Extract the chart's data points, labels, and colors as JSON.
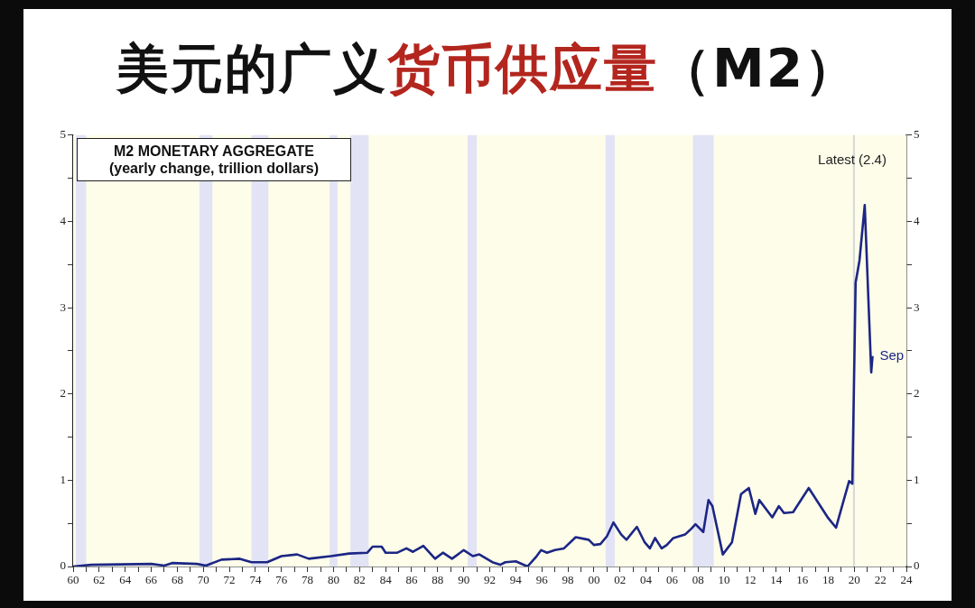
{
  "chart_data": {
    "type": "line",
    "title": "美元的广义货币供应量（M2）",
    "subtitle": "M2 MONETARY AGGREGATE",
    "annotations": [
      "(yearly change, trillion dollars)",
      "Latest (2.4)",
      {
        "text": "Sep",
        "x": 2021.4,
        "y": 2.44
      }
    ],
    "series": [
      {
        "color": "#1c2685",
        "x": [
          1960.0,
          1961.4,
          1966.0,
          1967.0,
          1967.6,
          1969.5,
          1970.2,
          1971.4,
          1972.8,
          1973.7,
          1974.9,
          1976.0,
          1977.2,
          1978.1,
          1979.8,
          1981.2,
          1982.6,
          1983.0,
          1983.7,
          1984.0,
          1984.9,
          1985.6,
          1986.1,
          1986.9,
          1987.8,
          1988.4,
          1989.1,
          1990.0,
          1990.7,
          1991.2,
          1992.2,
          1992.8,
          1993.2,
          1994.0,
          1994.9,
          1995.6,
          1995.95,
          1996.4,
          1997.0,
          1997.7,
          1998.6,
          1999.6,
          2000.0,
          2000.5,
          2001.0,
          2001.5,
          2002.1,
          2002.5,
          2003.3,
          2003.9,
          2004.3,
          2004.7,
          2005.2,
          2005.6,
          2006.1,
          2007.0,
          2007.5,
          2007.8,
          2008.4,
          2008.8,
          2009.1,
          2009.9,
          2010.6,
          2011.3,
          2011.9,
          2012.4,
          2012.7,
          2013.7,
          2014.2,
          2014.6,
          2015.3,
          2016.5,
          2018.0,
          2018.6,
          2018.8,
          2019.6,
          2019.85,
          2020.1,
          2020.3,
          2020.4,
          2020.8,
          2021.3,
          2021.4
        ],
        "values": [
          0.0,
          0.02,
          0.03,
          0.01,
          0.04,
          0.03,
          0.01,
          0.08,
          0.09,
          0.05,
          0.05,
          0.12,
          0.14,
          0.09,
          0.12,
          0.15,
          0.16,
          0.23,
          0.23,
          0.16,
          0.16,
          0.21,
          0.17,
          0.24,
          0.09,
          0.16,
          0.09,
          0.19,
          0.12,
          0.14,
          0.05,
          0.02,
          0.05,
          0.06,
          0.0,
          0.12,
          0.19,
          0.16,
          0.19,
          0.21,
          0.34,
          0.31,
          0.25,
          0.26,
          0.35,
          0.51,
          0.37,
          0.31,
          0.46,
          0.28,
          0.21,
          0.33,
          0.21,
          0.25,
          0.33,
          0.37,
          0.44,
          0.49,
          0.4,
          0.77,
          0.7,
          0.14,
          0.28,
          0.84,
          0.91,
          0.61,
          0.77,
          0.57,
          0.7,
          0.62,
          0.63,
          0.91,
          0.56,
          0.45,
          0.56,
          0.99,
          0.96,
          3.29,
          3.46,
          3.55,
          4.19,
          2.25,
          2.44
        ]
      }
    ],
    "marker": "none",
    "line_style": "solid",
    "grid": false,
    "legend": false,
    "xlim": [
      1960,
      2024
    ],
    "ylim": [
      0,
      5
    ],
    "y2lim": [
      0,
      5
    ],
    "yticks": [
      0,
      {
        "value": 0.5,
        "label": null
      },
      1,
      {
        "value": 1.5,
        "label": null
      },
      2,
      {
        "value": 2.5,
        "label": null
      },
      3,
      {
        "value": 3.5,
        "label": null
      },
      4,
      {
        "value": 4.5,
        "label": null
      },
      5
    ],
    "y2ticks": [
      0,
      {
        "value": 0.5,
        "label": null
      },
      1,
      {
        "value": 1.5,
        "label": null
      },
      2,
      {
        "value": 2.5,
        "label": null
      },
      3,
      {
        "value": 3.5,
        "label": null
      },
      4,
      {
        "value": 4.5,
        "label": null
      },
      5
    ],
    "xticks": [
      {
        "value": 1960,
        "label": "60"
      },
      {
        "value": 1961,
        "label": null
      },
      {
        "value": 1962,
        "label": "62"
      },
      {
        "value": 1963,
        "label": null
      },
      {
        "value": 1964,
        "label": "64"
      },
      {
        "value": 1965,
        "label": null
      },
      {
        "value": 1966,
        "label": "66"
      },
      {
        "value": 1967,
        "label": null
      },
      {
        "value": 1968,
        "label": "68"
      },
      {
        "value": 1969,
        "label": null
      },
      {
        "value": 1970,
        "label": "70"
      },
      {
        "value": 1971,
        "label": null
      },
      {
        "value": 1972,
        "label": "72"
      },
      {
        "value": 1973,
        "label": null
      },
      {
        "value": 1974,
        "label": "74"
      },
      {
        "value": 1975,
        "label": null
      },
      {
        "value": 1976,
        "label": "76"
      },
      {
        "value": 1977,
        "label": null
      },
      {
        "value": 1978,
        "label": "78"
      },
      {
        "value": 1979,
        "label": null
      },
      {
        "value": 1980,
        "label": "80"
      },
      {
        "value": 1981,
        "label": null
      },
      {
        "value": 1982,
        "label": "82"
      },
      {
        "value": 1983,
        "label": null
      },
      {
        "value": 1984,
        "label": "84"
      },
      {
        "value": 1985,
        "label": null
      },
      {
        "value": 1986,
        "label": "86"
      },
      {
        "value": 1987,
        "label": null
      },
      {
        "value": 1988,
        "label": "88"
      },
      {
        "value": 1989,
        "label": null
      },
      {
        "value": 1990,
        "label": "90"
      },
      {
        "value": 1991,
        "label": null
      },
      {
        "value": 1992,
        "label": "92"
      },
      {
        "value": 1993,
        "label": null
      },
      {
        "value": 1994,
        "label": "94"
      },
      {
        "value": 1995,
        "label": null
      },
      {
        "value": 1996,
        "label": "96"
      },
      {
        "value": 1997,
        "label": null
      },
      {
        "value": 1998,
        "label": "98"
      },
      {
        "value": 1999,
        "label": null
      },
      {
        "value": 2000,
        "label": "00"
      },
      {
        "value": 2001,
        "label": null
      },
      {
        "value": 2002,
        "label": "02"
      },
      {
        "value": 2003,
        "label": null
      },
      {
        "value": 2004,
        "label": "04"
      },
      {
        "value": 2005,
        "label": null
      },
      {
        "value": 2006,
        "label": "06"
      },
      {
        "value": 2007,
        "label": null
      },
      {
        "value": 2008,
        "label": "08"
      },
      {
        "value": 2009,
        "label": null
      },
      {
        "value": 2010,
        "label": "10"
      },
      {
        "value": 2011,
        "label": null
      },
      {
        "value": 2012,
        "label": "12"
      },
      {
        "value": 2013,
        "label": null
      },
      {
        "value": 2014,
        "label": "14"
      },
      {
        "value": 2015,
        "label": null
      },
      {
        "value": 2016,
        "label": "16"
      },
      {
        "value": 2017,
        "label": null
      },
      {
        "value": 2018,
        "label": "18"
      },
      {
        "value": 2019,
        "label": null
      },
      {
        "value": 2020,
        "label": "20"
      },
      {
        "value": 2021,
        "label": null
      },
      {
        "value": 2022,
        "label": "22"
      },
      {
        "value": 2023,
        "label": null
      },
      {
        "value": 2024,
        "label": "24"
      }
    ],
    "bands": [
      {
        "axis": "x",
        "from": 1960.2,
        "to": 1961.0,
        "color": "#e2e3f5"
      },
      {
        "axis": "x",
        "from": 1969.7,
        "to": 1970.7,
        "color": "#e2e3f5"
      },
      {
        "axis": "x",
        "from": 1973.7,
        "to": 1975.0,
        "color": "#e2e3f5"
      },
      {
        "axis": "x",
        "from": 1979.7,
        "to": 1980.3,
        "color": "#e2e3f5"
      },
      {
        "axis": "x",
        "from": 1981.3,
        "to": 1982.7,
        "color": "#e2e3f5"
      },
      {
        "axis": "x",
        "from": 1990.3,
        "to": 1991.0,
        "color": "#e2e3f5"
      },
      {
        "axis": "x",
        "from": 2000.9,
        "to": 2001.6,
        "color": "#e2e3f5"
      },
      {
        "axis": "x",
        "from": 2007.6,
        "to": 2009.2,
        "color": "#e2e3f5"
      },
      {
        "axis": "x",
        "from": 2019.9,
        "to": 2020.05,
        "color": "#d8d8d8"
      }
    ]
  }
}
